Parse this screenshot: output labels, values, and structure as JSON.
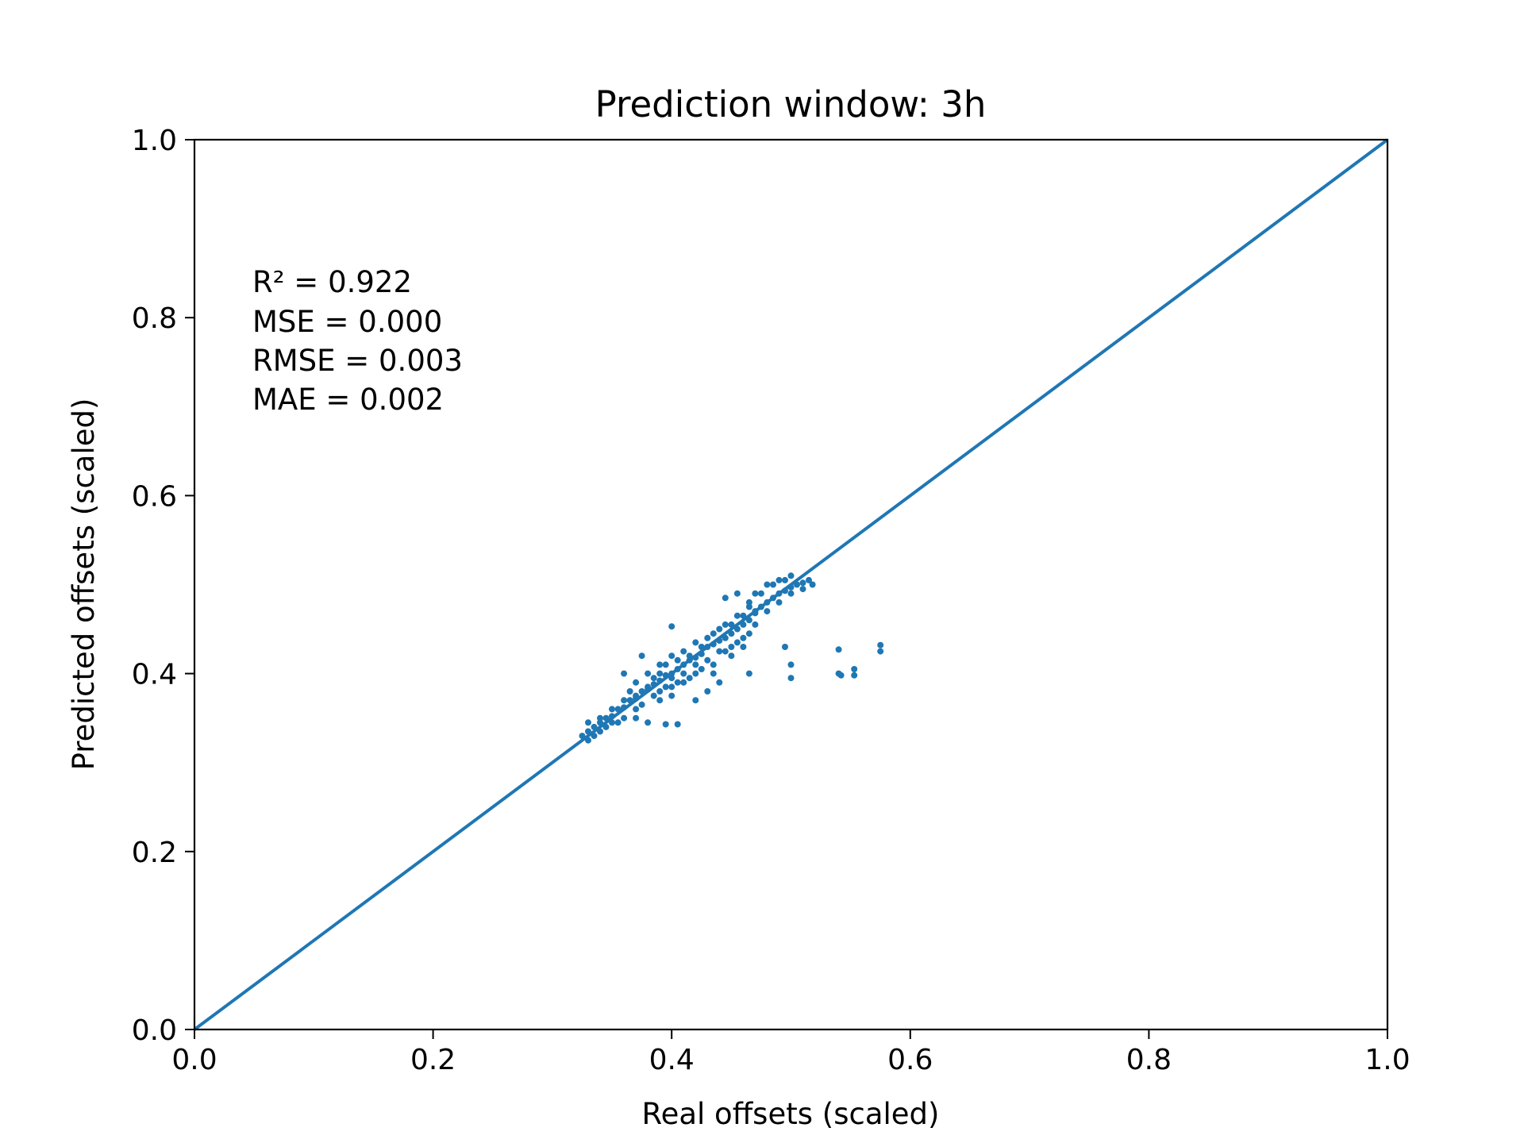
{
  "chart_data": {
    "type": "scatter",
    "title": "Prediction window: 3h",
    "xlabel": "Real offsets (scaled)",
    "ylabel": "Predicted offsets (scaled)",
    "xlim": [
      0.0,
      1.0
    ],
    "ylim": [
      0.0,
      1.0
    ],
    "xticks": [
      "0.0",
      "0.2",
      "0.4",
      "0.6",
      "0.8",
      "1.0"
    ],
    "yticks": [
      "0.0",
      "0.2",
      "0.4",
      "0.6",
      "0.8",
      "1.0"
    ],
    "grid": false,
    "color": "#1f77b4",
    "annotations": [
      "R² = 0.922",
      "MSE = 0.000",
      "RMSE = 0.003",
      "MAE = 0.002"
    ],
    "reference_line": {
      "x": [
        0.0,
        1.0
      ],
      "y": [
        0.0,
        1.0
      ]
    },
    "series": [
      {
        "points": [
          [
            0.325,
            0.33
          ],
          [
            0.33,
            0.335
          ],
          [
            0.335,
            0.34
          ],
          [
            0.34,
            0.345
          ],
          [
            0.345,
            0.35
          ],
          [
            0.35,
            0.352
          ],
          [
            0.355,
            0.36
          ],
          [
            0.36,
            0.362
          ],
          [
            0.365,
            0.37
          ],
          [
            0.37,
            0.372
          ],
          [
            0.375,
            0.38
          ],
          [
            0.38,
            0.382
          ],
          [
            0.385,
            0.388
          ],
          [
            0.39,
            0.392
          ],
          [
            0.395,
            0.398
          ],
          [
            0.4,
            0.4
          ],
          [
            0.405,
            0.405
          ],
          [
            0.41,
            0.41
          ],
          [
            0.415,
            0.415
          ],
          [
            0.42,
            0.418
          ],
          [
            0.425,
            0.422
          ],
          [
            0.43,
            0.43
          ],
          [
            0.435,
            0.433
          ],
          [
            0.44,
            0.437
          ],
          [
            0.445,
            0.44
          ],
          [
            0.45,
            0.445
          ],
          [
            0.455,
            0.45
          ],
          [
            0.46,
            0.455
          ],
          [
            0.465,
            0.46
          ],
          [
            0.47,
            0.468
          ],
          [
            0.475,
            0.475
          ],
          [
            0.48,
            0.48
          ],
          [
            0.485,
            0.485
          ],
          [
            0.49,
            0.49
          ],
          [
            0.495,
            0.493
          ],
          [
            0.5,
            0.497
          ],
          [
            0.505,
            0.5
          ],
          [
            0.51,
            0.502
          ],
          [
            0.515,
            0.505
          ],
          [
            0.518,
            0.5
          ],
          [
            0.33,
            0.345
          ],
          [
            0.34,
            0.335
          ],
          [
            0.35,
            0.36
          ],
          [
            0.36,
            0.35
          ],
          [
            0.37,
            0.39
          ],
          [
            0.375,
            0.365
          ],
          [
            0.38,
            0.4
          ],
          [
            0.385,
            0.375
          ],
          [
            0.39,
            0.41
          ],
          [
            0.395,
            0.385
          ],
          [
            0.4,
            0.42
          ],
          [
            0.405,
            0.39
          ],
          [
            0.41,
            0.425
          ],
          [
            0.415,
            0.395
          ],
          [
            0.42,
            0.435
          ],
          [
            0.425,
            0.405
          ],
          [
            0.43,
            0.44
          ],
          [
            0.435,
            0.41
          ],
          [
            0.44,
            0.45
          ],
          [
            0.445,
            0.425
          ],
          [
            0.45,
            0.455
          ],
          [
            0.455,
            0.435
          ],
          [
            0.46,
            0.465
          ],
          [
            0.465,
            0.445
          ],
          [
            0.47,
            0.47
          ],
          [
            0.38,
            0.385
          ],
          [
            0.385,
            0.395
          ],
          [
            0.39,
            0.4
          ],
          [
            0.395,
            0.41
          ],
          [
            0.4,
            0.395
          ],
          [
            0.405,
            0.415
          ],
          [
            0.41,
            0.4
          ],
          [
            0.415,
            0.42
          ],
          [
            0.42,
            0.41
          ],
          [
            0.425,
            0.43
          ],
          [
            0.37,
            0.375
          ],
          [
            0.365,
            0.38
          ],
          [
            0.36,
            0.37
          ],
          [
            0.355,
            0.345
          ],
          [
            0.345,
            0.34
          ],
          [
            0.335,
            0.33
          ],
          [
            0.33,
            0.325
          ],
          [
            0.34,
            0.35
          ],
          [
            0.35,
            0.345
          ],
          [
            0.37,
            0.36
          ],
          [
            0.39,
            0.38
          ],
          [
            0.4,
            0.385
          ],
          [
            0.41,
            0.39
          ],
          [
            0.42,
            0.4
          ],
          [
            0.43,
            0.415
          ],
          [
            0.44,
            0.425
          ],
          [
            0.45,
            0.43
          ],
          [
            0.46,
            0.44
          ],
          [
            0.47,
            0.455
          ],
          [
            0.48,
            0.47
          ],
          [
            0.49,
            0.48
          ],
          [
            0.5,
            0.49
          ],
          [
            0.51,
            0.495
          ],
          [
            0.495,
            0.505
          ],
          [
            0.485,
            0.5
          ],
          [
            0.475,
            0.49
          ],
          [
            0.465,
            0.475
          ],
          [
            0.455,
            0.465
          ],
          [
            0.445,
            0.455
          ],
          [
            0.435,
            0.445
          ],
          [
            0.4,
            0.453
          ],
          [
            0.375,
            0.42
          ],
          [
            0.36,
            0.4
          ],
          [
            0.37,
            0.35
          ],
          [
            0.44,
            0.39
          ],
          [
            0.43,
            0.38
          ],
          [
            0.45,
            0.42
          ],
          [
            0.46,
            0.43
          ],
          [
            0.465,
            0.48
          ],
          [
            0.47,
            0.49
          ],
          [
            0.48,
            0.5
          ],
          [
            0.49,
            0.505
          ],
          [
            0.5,
            0.51
          ],
          [
            0.455,
            0.49
          ],
          [
            0.445,
            0.485
          ],
          [
            0.39,
            0.37
          ],
          [
            0.4,
            0.375
          ],
          [
            0.42,
            0.37
          ],
          [
            0.38,
            0.345
          ],
          [
            0.395,
            0.343
          ],
          [
            0.405,
            0.343
          ],
          [
            0.435,
            0.4
          ],
          [
            0.465,
            0.4
          ],
          [
            0.495,
            0.43
          ],
          [
            0.5,
            0.41
          ],
          [
            0.5,
            0.395
          ],
          [
            0.54,
            0.427
          ],
          [
            0.54,
            0.4
          ],
          [
            0.542,
            0.398
          ],
          [
            0.553,
            0.405
          ],
          [
            0.553,
            0.398
          ],
          [
            0.575,
            0.432
          ],
          [
            0.575,
            0.425
          ]
        ]
      }
    ]
  }
}
